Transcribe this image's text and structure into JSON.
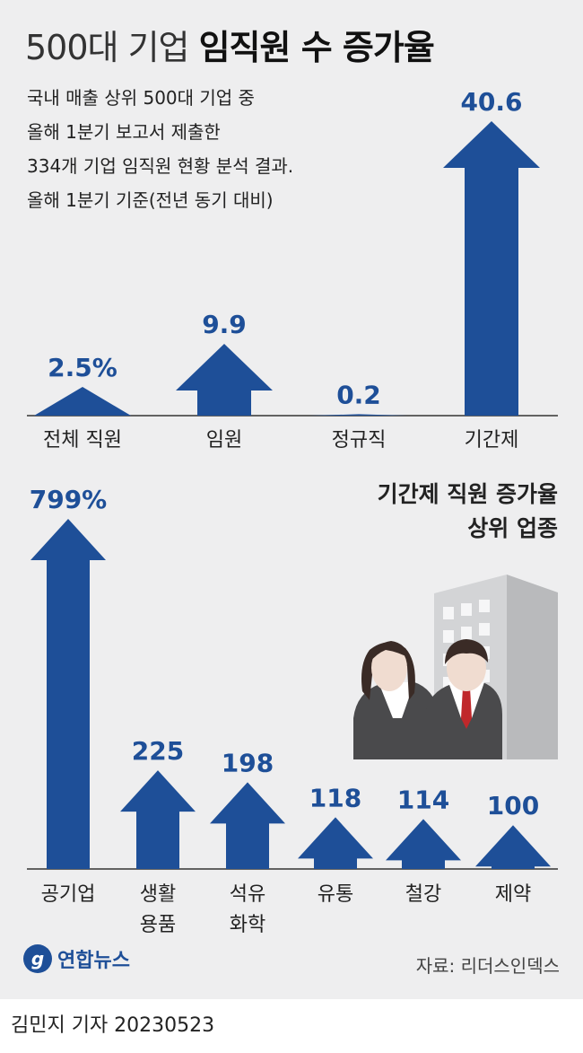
{
  "title": {
    "light": "500대 기업",
    "bold": "임직원 수 증가율"
  },
  "description": [
    "국내 매출 상위 500대 기업 중",
    "올해 1분기 보고서 제출한",
    "334개 기업 임직원 현황 분석 결과.",
    "올해 1분기 기준(전년 동기 대비)"
  ],
  "subtitle": [
    "기간제 직원 증가율",
    "상위 업종"
  ],
  "source": "자료: 리더스인덱스",
  "logo": {
    "mark": "g",
    "text": "연합뉴스"
  },
  "byline": "김민지 기자  20230523",
  "colors": {
    "accent": "#1e4f98",
    "panel": "#eeeeef"
  },
  "chart_data": [
    {
      "type": "bar",
      "title": "500대 기업 임직원 수 증가율",
      "unit": "%",
      "categories": [
        "전체 직원",
        "임원",
        "정규직",
        "기간제"
      ],
      "values": [
        2.5,
        9.9,
        0.2,
        40.6
      ],
      "value_labels": [
        "2.5%",
        "9.9",
        "0.2",
        "40.6"
      ]
    },
    {
      "type": "bar",
      "title": "기간제 직원 증가율 상위 업종",
      "unit": "%",
      "categories": [
        "공기업",
        "생활용품",
        "석유화학",
        "유통",
        "철강",
        "제약"
      ],
      "category_lines": [
        [
          "공기업"
        ],
        [
          "생활",
          "용품"
        ],
        [
          "석유",
          "화학"
        ],
        [
          "유통"
        ],
        [
          "철강"
        ],
        [
          "제약"
        ]
      ],
      "values": [
        799,
        225,
        198,
        118,
        114,
        100
      ],
      "value_labels": [
        "799%",
        "225",
        "198",
        "118",
        "114",
        "100"
      ]
    }
  ]
}
